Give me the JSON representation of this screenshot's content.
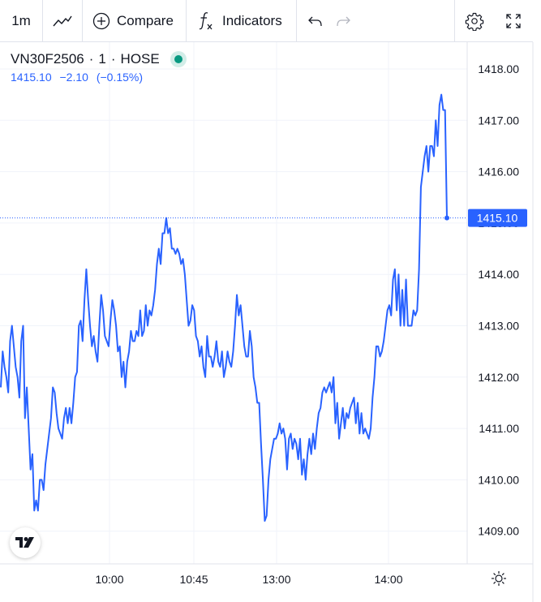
{
  "toolbar": {
    "interval": "1m",
    "chart_type_icon": "line-chart-icon",
    "compare_label": "Compare",
    "indicators_label": "Indicators"
  },
  "legend": {
    "symbol": "VN30F2506",
    "interval": "1",
    "exchange": "HOSE",
    "last": "1415.10",
    "change": "−2.10",
    "change_pct": "(−0.15%)"
  },
  "colors": {
    "line": "#2962ff",
    "market_open_dot": "#089981",
    "grid": "#f0f3fa"
  },
  "price_axis": {
    "ticks": [
      "1418.00",
      "1417.00",
      "1416.00",
      "1415.00",
      "1414.00",
      "1413.00",
      "1412.00",
      "1411.00",
      "1410.00",
      "1409.00"
    ],
    "last_label": "1415.10"
  },
  "time_axis": {
    "ticks": [
      "10:00",
      "10:45",
      "13:00",
      "14:00"
    ]
  },
  "chart_data": {
    "type": "line",
    "series": [
      {
        "values": [
          1411.8,
          1412.5,
          1412.2,
          1412.0,
          1411.7,
          1412.7,
          1413.0,
          1412.6,
          1412.2,
          1412.0,
          1411.6,
          1412.7,
          1413.0,
          1411.2,
          1411.8,
          1411.0,
          1410.2,
          1410.5,
          1409.4,
          1409.6,
          1409.4,
          1410.0,
          1410.0,
          1409.8,
          1410.3,
          1410.6,
          1410.9,
          1411.2,
          1411.8,
          1411.7,
          1411.3,
          1411.0,
          1410.9,
          1410.8,
          1411.2,
          1411.4,
          1411.1,
          1411.4,
          1411.1,
          1411.5,
          1412.0,
          1412.1,
          1413.0,
          1413.1,
          1412.7,
          1413.5,
          1414.1,
          1413.5,
          1413.0,
          1412.6,
          1412.8,
          1412.5,
          1412.3,
          1413.0,
          1413.6,
          1413.3,
          1412.8,
          1412.7,
          1412.6,
          1413.1,
          1413.5,
          1413.3,
          1413.0,
          1412.5,
          1412.6,
          1412.0,
          1412.3,
          1411.8,
          1412.3,
          1412.5,
          1412.9,
          1412.7,
          1412.7,
          1412.9,
          1412.8,
          1413.3,
          1412.8,
          1412.9,
          1413.4,
          1413.0,
          1413.3,
          1413.2,
          1413.4,
          1413.7,
          1414.2,
          1414.5,
          1414.2,
          1414.8,
          1414.8,
          1415.1,
          1414.8,
          1414.9,
          1414.5,
          1414.5,
          1414.4,
          1414.5,
          1414.4,
          1414.2,
          1414.3,
          1414.0,
          1413.5,
          1413.0,
          1413.1,
          1413.4,
          1413.3,
          1412.8,
          1412.7,
          1412.4,
          1412.6,
          1412.2,
          1412.0,
          1412.8,
          1412.4,
          1412.4,
          1412.2,
          1412.4,
          1412.7,
          1412.3,
          1412.2,
          1412.5,
          1412.0,
          1412.2,
          1412.5,
          1412.3,
          1412.2,
          1412.5,
          1413.0,
          1413.6,
          1413.2,
          1413.4,
          1413.0,
          1412.6,
          1412.4,
          1412.4,
          1412.9,
          1412.6,
          1412.0,
          1411.8,
          1411.5,
          1411.5,
          1410.7,
          1410.0,
          1409.2,
          1409.3,
          1410.0,
          1410.4,
          1410.6,
          1410.8,
          1410.8,
          1410.9,
          1411.1,
          1410.9,
          1411.0,
          1410.8,
          1410.2,
          1410.8,
          1410.9,
          1410.6,
          1410.8,
          1410.7,
          1410.4,
          1410.8,
          1410.1,
          1410.4,
          1410.0,
          1410.5,
          1410.8,
          1410.5,
          1410.9,
          1410.6,
          1411.0,
          1411.3,
          1411.4,
          1411.7,
          1411.8,
          1411.7,
          1411.8,
          1411.9,
          1411.7,
          1412.0,
          1411.1,
          1411.5,
          1410.8,
          1411.1,
          1411.4,
          1411.0,
          1411.3,
          1411.2,
          1411.4,
          1411.5,
          1411.6,
          1411.1,
          1411.5,
          1410.9,
          1411.3,
          1410.9,
          1411.0,
          1410.9,
          1410.8,
          1411.0,
          1411.6,
          1412.0,
          1412.6,
          1412.6,
          1412.4,
          1412.5,
          1412.7,
          1413.0,
          1413.3,
          1413.4,
          1413.2,
          1413.9,
          1414.1,
          1413.3,
          1414.0,
          1413.0,
          1413.7,
          1413.0,
          1413.9,
          1413.0,
          1413.0,
          1413.0,
          1413.3,
          1413.2,
          1413.3,
          1414.1,
          1415.7,
          1416.0,
          1416.3,
          1416.5,
          1416.0,
          1416.5,
          1416.5,
          1416.3,
          1417.0,
          1416.5,
          1417.3,
          1417.5,
          1417.2,
          1417.2,
          1415.1
        ]
      }
    ],
    "x_ticks": [
      "10:00",
      "10:45",
      "13:00",
      "14:00"
    ],
    "ylim": [
      1408.4,
      1418.4
    ],
    "last_value": 1415.1,
    "grid": true
  }
}
